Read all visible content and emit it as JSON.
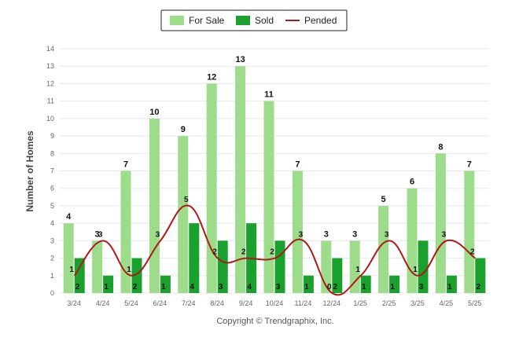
{
  "chart_data": {
    "type": "bar",
    "ylabel": "Number of Homes",
    "xlabel": "",
    "ylim": [
      0,
      14
    ],
    "yticks": [
      0,
      1,
      2,
      3,
      4,
      5,
      6,
      7,
      8,
      9,
      10,
      11,
      12,
      13,
      14
    ],
    "categories": [
      "3/24",
      "4/24",
      "5/24",
      "6/24",
      "7/24",
      "8/24",
      "9/24",
      "10/24",
      "11/24",
      "12/24",
      "1/25",
      "2/25",
      "3/25",
      "4/25",
      "5/25"
    ],
    "series": [
      {
        "name": "For Sale",
        "kind": "bar",
        "color": "#9ddc8a",
        "values": [
          4,
          3,
          7,
          10,
          9,
          12,
          13,
          11,
          7,
          3,
          3,
          5,
          6,
          8,
          7
        ]
      },
      {
        "name": "Sold",
        "kind": "bar",
        "color": "#1aa02c",
        "values": [
          2,
          1,
          2,
          1,
          4,
          3,
          4,
          3,
          1,
          2,
          1,
          1,
          3,
          1,
          2
        ]
      },
      {
        "name": "Pended",
        "kind": "line",
        "color": "#b01818",
        "values": [
          1,
          3,
          1,
          3,
          5,
          2,
          2,
          2,
          3,
          0,
          1,
          3,
          1,
          3,
          2
        ]
      }
    ],
    "grid": true,
    "legend_position": "top-center"
  },
  "footer": {
    "copyright": "Copyright © Trendgraphix, Inc."
  }
}
